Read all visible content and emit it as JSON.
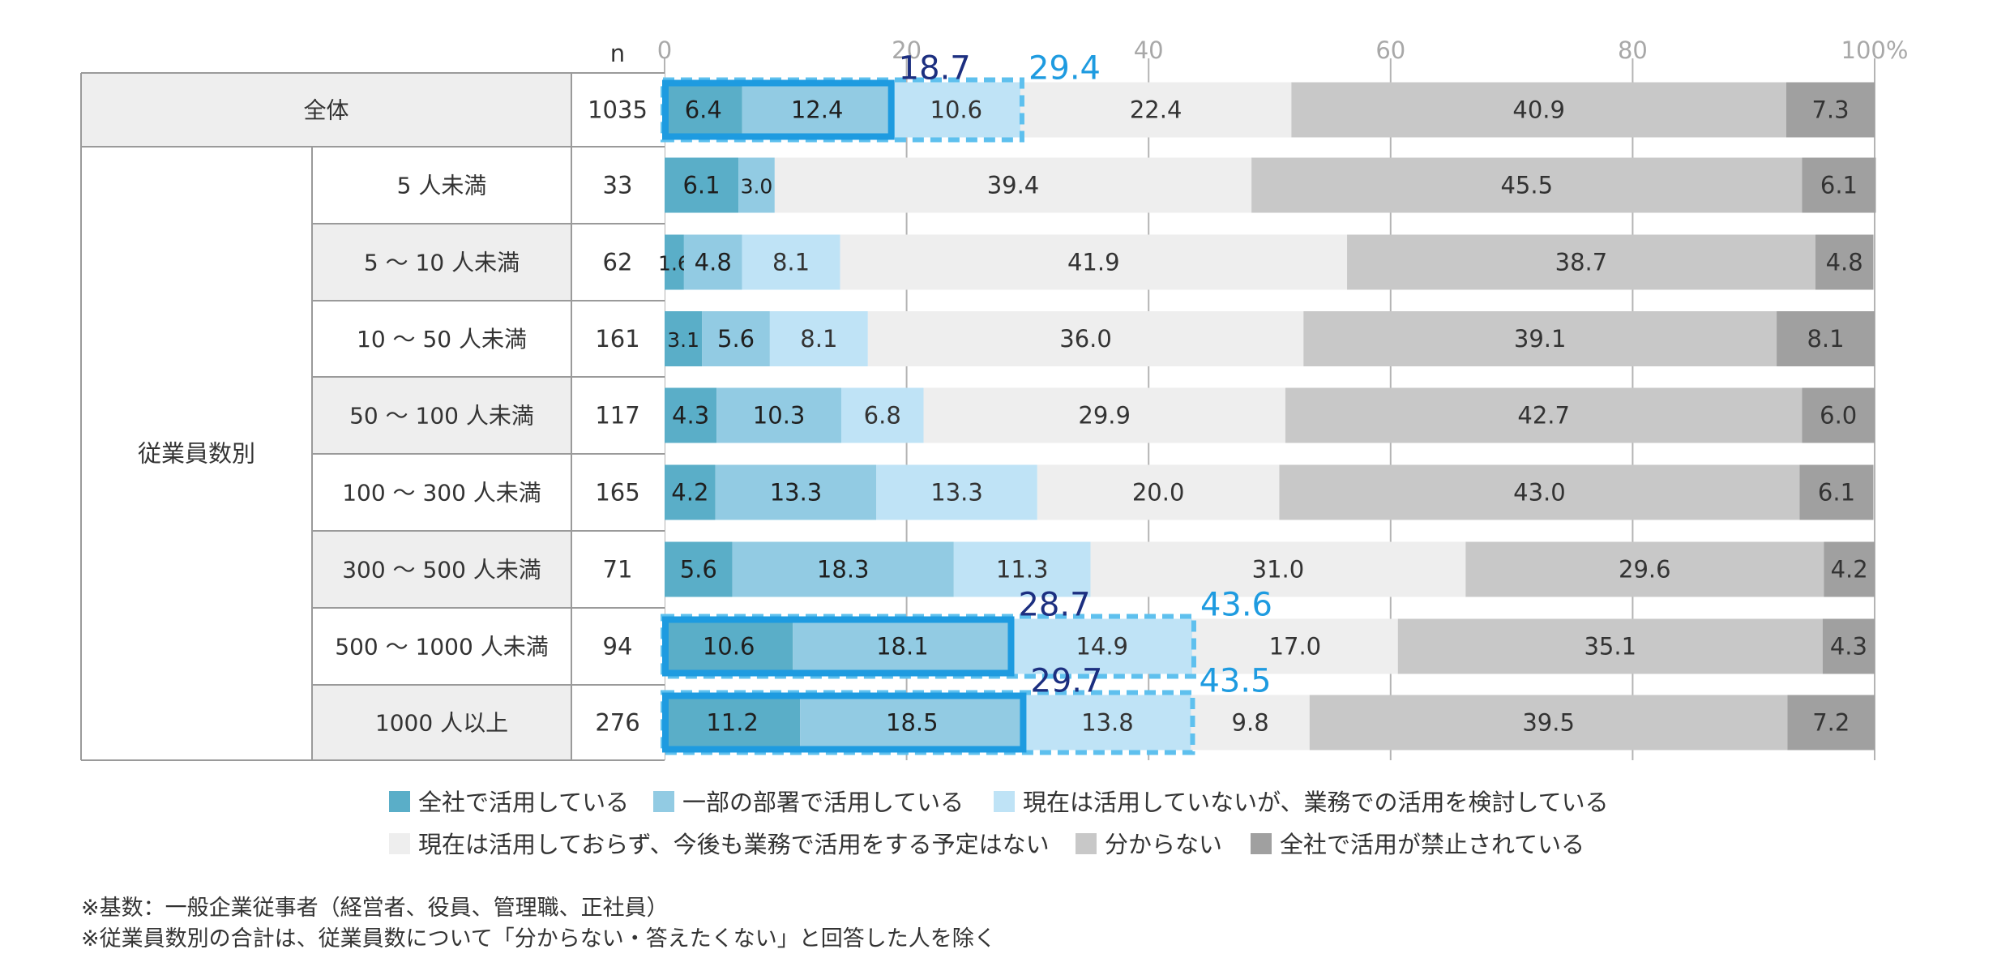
{
  "chart_data": {
    "type": "bar",
    "orientation": "horizontal",
    "stacked": true,
    "x_ticks": [
      "0",
      "20",
      "40",
      "60",
      "80",
      "100%"
    ],
    "xlim": [
      0,
      100
    ],
    "grid": true,
    "n_header": "n",
    "group_label": "従業員数別",
    "rows": [
      {
        "label": "全体",
        "n": "1035"
      },
      {
        "label": "5 人未満",
        "n": "33"
      },
      {
        "label": "5 ～ 10 人未満",
        "n": "62"
      },
      {
        "label": "10 ～ 50 人未満",
        "n": "161"
      },
      {
        "label": "50 ～ 100 人未満",
        "n": "117"
      },
      {
        "label": "100 ～ 300 人未満",
        "n": "165"
      },
      {
        "label": "300 ～ 500 人未満",
        "n": "71"
      },
      {
        "label": "500 ～ 1000 人未満",
        "n": "94"
      },
      {
        "label": "1000 人以上",
        "n": "276"
      }
    ],
    "series": [
      {
        "name": "全社で活用している",
        "color": "#5aaec8",
        "label_color": "#1f1f1f",
        "values": [
          6.4,
          6.1,
          1.6,
          3.1,
          4.3,
          4.2,
          5.6,
          10.6,
          11.2
        ]
      },
      {
        "name": "一部の部署で活用している",
        "color": "#92cbe3",
        "label_color": "#1f1f1f",
        "values": [
          12.4,
          3.0,
          4.8,
          5.6,
          10.3,
          13.3,
          18.3,
          18.1,
          18.5
        ]
      },
      {
        "name": "現在は活用していないが、業務での活用を検討している",
        "color": "#bfe3f6",
        "label_color": "#333333",
        "values": [
          10.6,
          0.0,
          8.1,
          8.1,
          6.8,
          13.3,
          11.3,
          14.9,
          13.8
        ]
      },
      {
        "name": "現在は活用しておらず、今後も業務で活用をする予定はない",
        "color": "#eeeeee",
        "label_color": "#333333",
        "values": [
          22.4,
          39.4,
          41.9,
          36.0,
          29.9,
          20.0,
          31.0,
          17.0,
          9.8
        ]
      },
      {
        "name": "分からない",
        "color": "#c8c8c8",
        "label_color": "#333333",
        "values": [
          40.9,
          45.5,
          38.7,
          39.1,
          42.7,
          43.0,
          29.6,
          35.1,
          39.5
        ]
      },
      {
        "name": "全社で活用が禁止されている",
        "color": "#a0a0a0",
        "label_color": "#333333",
        "values": [
          7.3,
          6.1,
          4.8,
          8.1,
          6.0,
          6.1,
          4.2,
          4.3,
          7.2
        ]
      }
    ],
    "highlights": [
      {
        "row": 0,
        "sum_use": "18.7",
        "sum_use_plus_consider": "29.4"
      },
      {
        "row": 7,
        "sum_use": "28.7",
        "sum_use_plus_consider": "43.6"
      },
      {
        "row": 8,
        "sum_use": "29.7",
        "sum_use_plus_consider": "43.5"
      }
    ],
    "colors": {
      "highlight_box": "#1e9be0",
      "highlight_dashed": "#5ec0ee",
      "sum_use_text": "#1c2f80",
      "sum_total_text": "#1e9be0"
    }
  },
  "notes": [
    "※基数：一般企業従事者（経営者、役員、管理職、正社員）",
    "※従業員数別の合計は、従業員数について「分からない・答えたくない」と回答した人を除く"
  ]
}
